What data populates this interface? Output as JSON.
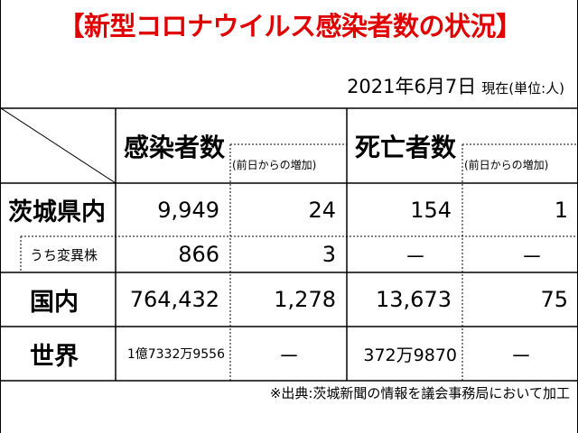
{
  "title": "【新型コロナウイルス感染者数の状況】",
  "date": "2021年6月7日",
  "as_of_unit": "現在(単位:人)",
  "headers": {
    "cases": "感染者数",
    "cases_change": "(前日からの増加)",
    "deaths": "死亡者数",
    "deaths_change": "(前日からの増加)"
  },
  "rows": [
    {
      "label": "茨城県内",
      "cases": "9,949",
      "cases_change": "24",
      "deaths": "154",
      "deaths_change": "1"
    },
    {
      "label": "うち変異株",
      "cases": "866",
      "cases_change": "3",
      "deaths": "－",
      "deaths_change": "－"
    },
    {
      "label": "国内",
      "cases": "764,432",
      "cases_change": "1,278",
      "deaths": "13,673",
      "deaths_change": "75"
    },
    {
      "label": "世界",
      "cases": "1億7332万9556",
      "cases_change": "－",
      "deaths": "372万9870",
      "deaths_change": "－"
    }
  ],
  "source": "※出典:茨城新聞の情報を議会事務局において加工",
  "colors": {
    "title": "#e00000",
    "lines": "#000000",
    "dashed": "#000000"
  }
}
